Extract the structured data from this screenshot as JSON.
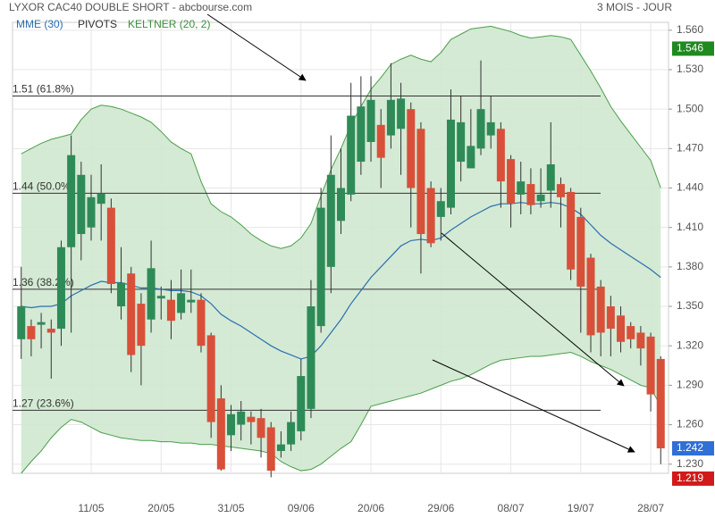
{
  "header": {
    "title": "LYXOR CAC40 DOUBLE SHORT - abcbourse.com",
    "period": "3 MOIS - JOUR"
  },
  "chart_data": {
    "type": "candlestick",
    "categories": [
      null,
      null,
      null,
      null,
      null,
      null,
      null,
      "11/05",
      null,
      null,
      null,
      null,
      null,
      null,
      "20/05",
      null,
      null,
      null,
      null,
      null,
      null,
      "31/05",
      null,
      null,
      null,
      null,
      null,
      null,
      "09/06",
      null,
      null,
      null,
      null,
      null,
      null,
      "20/06",
      null,
      null,
      null,
      null,
      null,
      null,
      "29/06",
      null,
      null,
      null,
      null,
      null,
      null,
      "08/07",
      null,
      null,
      null,
      null,
      null,
      null,
      "19/07",
      null,
      null,
      null,
      null,
      null,
      null,
      "28/07",
      null
    ],
    "open": [
      1.325,
      1.335,
      1.336,
      1.333,
      1.333,
      1.395,
      1.405,
      1.41,
      1.428,
      1.425,
      1.35,
      1.375,
      1.352,
      1.34,
      1.356,
      1.355,
      1.345,
      1.353,
      1.355,
      1.328,
      1.28,
      1.252,
      1.26,
      1.266,
      1.265,
      1.258,
      1.24,
      1.245,
      1.255,
      1.272,
      1.335,
      1.38,
      1.415,
      1.435,
      1.46,
      1.475,
      1.488,
      1.48,
      1.485,
      1.5,
      1.485,
      1.44,
      1.418,
      1.425,
      1.46,
      1.455,
      1.47,
      1.48,
      1.485,
      1.462,
      1.435,
      1.443,
      1.43,
      1.438,
      1.443,
      1.437,
      1.418,
      1.387,
      1.365,
      1.35,
      1.343,
      1.335,
      1.33,
      1.327,
      1.31
    ],
    "high": [
      1.38,
      1.34,
      1.345,
      1.34,
      1.4,
      1.48,
      1.46,
      1.45,
      1.458,
      1.432,
      1.395,
      1.38,
      1.36,
      1.4,
      1.365,
      1.37,
      1.378,
      1.378,
      1.36,
      1.33,
      1.29,
      1.275,
      1.278,
      1.27,
      1.272,
      1.262,
      1.255,
      1.27,
      1.31,
      1.37,
      1.44,
      1.48,
      1.47,
      1.52,
      1.525,
      1.525,
      1.5,
      1.535,
      1.52,
      1.505,
      1.49,
      1.445,
      1.44,
      1.515,
      1.51,
      1.5,
      1.537,
      1.51,
      1.49,
      1.465,
      1.46,
      1.455,
      1.455,
      1.49,
      1.448,
      1.44,
      1.425,
      1.39,
      1.37,
      1.358,
      1.35,
      1.338,
      1.335,
      1.33,
      1.312
    ],
    "low": [
      1.31,
      1.312,
      1.318,
      1.295,
      1.32,
      1.33,
      1.385,
      1.4,
      1.4,
      1.36,
      1.34,
      1.3,
      1.29,
      1.33,
      1.34,
      1.325,
      1.34,
      1.345,
      1.315,
      1.25,
      1.225,
      1.24,
      1.248,
      1.245,
      1.235,
      1.22,
      1.235,
      1.24,
      1.248,
      1.265,
      1.33,
      1.36,
      1.405,
      1.43,
      1.45,
      1.46,
      1.44,
      1.47,
      1.45,
      1.41,
      1.375,
      1.395,
      1.4,
      1.42,
      1.445,
      1.455,
      1.465,
      1.47,
      1.425,
      1.41,
      1.42,
      1.42,
      1.425,
      1.425,
      1.41,
      1.37,
      1.33,
      1.315,
      1.312,
      1.312,
      1.315,
      1.318,
      1.305,
      1.27,
      1.23
    ],
    "close": [
      1.35,
      1.325,
      1.338,
      1.33,
      1.395,
      1.465,
      1.45,
      1.433,
      1.436,
      1.367,
      1.368,
      1.313,
      1.32,
      1.379,
      1.358,
      1.339,
      1.36,
      1.355,
      1.32,
      1.262,
      1.226,
      1.268,
      1.27,
      1.262,
      1.25,
      1.225,
      1.245,
      1.262,
      1.297,
      1.35,
      1.425,
      1.45,
      1.44,
      1.495,
      1.502,
      1.507,
      1.463,
      1.507,
      1.508,
      1.44,
      1.405,
      1.398,
      1.43,
      1.492,
      1.49,
      1.472,
      1.5,
      1.49,
      1.445,
      1.428,
      1.445,
      1.427,
      1.435,
      1.458,
      1.433,
      1.378,
      1.365,
      1.328,
      1.33,
      1.333,
      1.323,
      1.325,
      1.318,
      1.283,
      1.242
    ],
    "up_color": "#2e8b57",
    "down_color": "#d9503a",
    "mme": {
      "name": "MME (30)",
      "color": "#2a6fb0",
      "values": [
        1.35,
        1.349,
        1.35,
        1.35,
        1.352,
        1.358,
        1.362,
        1.366,
        1.369,
        1.368,
        1.368,
        1.366,
        1.364,
        1.364,
        1.363,
        1.362,
        1.362,
        1.361,
        1.358,
        1.352,
        1.344,
        1.339,
        1.335,
        1.33,
        1.325,
        1.32,
        1.316,
        1.313,
        1.31,
        1.312,
        1.32,
        1.33,
        1.34,
        1.352,
        1.362,
        1.372,
        1.38,
        1.388,
        1.396,
        1.4,
        1.401,
        1.4,
        1.402,
        1.408,
        1.413,
        1.418,
        1.422,
        1.426,
        1.428,
        1.428,
        1.429,
        1.428,
        1.428,
        1.429,
        1.428,
        1.425,
        1.42,
        1.412,
        1.404,
        1.398,
        1.393,
        1.388,
        1.383,
        1.378,
        1.372
      ]
    },
    "keltner": {
      "name": "KELTNER (20, 2)",
      "color": "#4a9e4a",
      "fill": "#cfe8cf",
      "upper": [
        1.466,
        1.47,
        1.474,
        1.477,
        1.479,
        1.481,
        1.492,
        1.5,
        1.503,
        1.502,
        1.5,
        1.497,
        1.494,
        1.49,
        1.483,
        1.475,
        1.47,
        1.466,
        1.445,
        1.428,
        1.422,
        1.418,
        1.412,
        1.405,
        1.4,
        1.396,
        1.394,
        1.396,
        1.402,
        1.413,
        1.434,
        1.454,
        1.47,
        1.488,
        1.502,
        1.515,
        1.524,
        1.534,
        1.538,
        1.541,
        1.538,
        1.536,
        1.543,
        1.553,
        1.557,
        1.561,
        1.562,
        1.563,
        1.561,
        1.559,
        1.556,
        1.554,
        1.555,
        1.556,
        1.555,
        1.553,
        1.541,
        1.529,
        1.516,
        1.502,
        1.491,
        1.481,
        1.471,
        1.461,
        1.44
      ],
      "lower": [
        1.223,
        1.232,
        1.24,
        1.25,
        1.258,
        1.264,
        1.262,
        1.258,
        1.254,
        1.252,
        1.25,
        1.249,
        1.248,
        1.248,
        1.247,
        1.247,
        1.246,
        1.246,
        1.245,
        1.245,
        1.244,
        1.243,
        1.242,
        1.241,
        1.24,
        1.238,
        1.232,
        1.228,
        1.225,
        1.226,
        1.23,
        1.236,
        1.242,
        1.247,
        1.26,
        1.274,
        1.276,
        1.278,
        1.28,
        1.282,
        1.284,
        1.287,
        1.29,
        1.293,
        1.295,
        1.298,
        1.302,
        1.306,
        1.309,
        1.31,
        1.311,
        1.312,
        1.312,
        1.313,
        1.314,
        1.315,
        1.312,
        1.308,
        1.305,
        1.302,
        1.298,
        1.294,
        1.29,
        1.288,
        1.274
      ]
    },
    "pivots": {
      "name": "PIVOTS",
      "color": "#333333",
      "lines": [
        {
          "value": 1.51,
          "label": "1.51  (61.8%)"
        },
        {
          "value": 1.436,
          "label": "1.44  (50.0%)"
        },
        {
          "value": 1.363,
          "label": "1.36  (38.2%)"
        },
        {
          "value": 1.271,
          "label": "1.27  (23.6%)"
        }
      ]
    },
    "ylim": [
      1.223,
      1.566
    ],
    "yticks": [
      {
        "value": 1.23,
        "label": "1.230"
      },
      {
        "value": 1.26,
        "label": "1.260"
      },
      {
        "value": 1.29,
        "label": "1.290"
      },
      {
        "value": 1.32,
        "label": "1.320"
      },
      {
        "value": 1.35,
        "label": "1.350"
      },
      {
        "value": 1.38,
        "label": "1.380"
      },
      {
        "value": 1.41,
        "label": "1.410"
      },
      {
        "value": 1.44,
        "label": "1.440"
      },
      {
        "value": 1.47,
        "label": "1.470"
      },
      {
        "value": 1.5,
        "label": "1.500"
      },
      {
        "value": 1.53,
        "label": "1.530"
      },
      {
        "value": 1.56,
        "label": "1.560"
      }
    ],
    "grid": true,
    "price_tags": [
      {
        "value": 1.546,
        "label": "1.546",
        "color": "#1f8a1f"
      },
      {
        "value": 1.242,
        "label": "1.242",
        "color": "#2f6fd6"
      },
      {
        "value": 1.219,
        "label": "1.219",
        "color": "#d11a1a"
      }
    ]
  }
}
